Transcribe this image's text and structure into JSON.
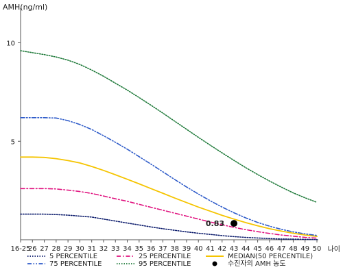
{
  "chart_data": {
    "type": "line",
    "ylabel": "AMH(ng/ml)",
    "xlabel": "나이",
    "categories": [
      "16-25",
      "26",
      "27",
      "28",
      "29",
      "30",
      "31",
      "32",
      "33",
      "34",
      "35",
      "36",
      "37",
      "38",
      "39",
      "40",
      "41",
      "42",
      "43",
      "44",
      "45",
      "46",
      "47",
      "48",
      "49",
      "50"
    ],
    "yticks": [
      5,
      10
    ],
    "ylim": [
      0,
      11.2
    ],
    "grid": false,
    "legend_position": "bottom",
    "series": [
      {
        "name": "5 PERCENTILE",
        "color": "#0a1a6b",
        "dash": "dotted",
        "values": [
          1.3,
          1.3,
          1.3,
          1.28,
          1.25,
          1.2,
          1.15,
          1.05,
          0.95,
          0.85,
          0.75,
          0.65,
          0.56,
          0.48,
          0.4,
          0.33,
          0.27,
          0.21,
          0.16,
          0.12,
          0.09,
          0.06,
          0.04,
          0.03,
          0.02,
          0.01
        ]
      },
      {
        "name": "25 PERCENTILE",
        "color": "#e0127f",
        "dash": "dashdot",
        "values": [
          2.6,
          2.6,
          2.6,
          2.58,
          2.52,
          2.45,
          2.35,
          2.22,
          2.08,
          1.95,
          1.8,
          1.65,
          1.5,
          1.35,
          1.2,
          1.05,
          0.9,
          0.76,
          0.63,
          0.51,
          0.41,
          0.32,
          0.24,
          0.18,
          0.12,
          0.08
        ]
      },
      {
        "name": "MEDIAN(50 PERCENTILE)",
        "color": "#f5c400",
        "dash": "solid",
        "values": [
          4.2,
          4.2,
          4.18,
          4.12,
          4.02,
          3.9,
          3.72,
          3.52,
          3.3,
          3.07,
          2.84,
          2.6,
          2.36,
          2.12,
          1.89,
          1.66,
          1.45,
          1.24,
          1.05,
          0.87,
          0.71,
          0.56,
          0.44,
          0.33,
          0.24,
          0.17
        ]
      },
      {
        "name": "75 PERCENTILE",
        "color": "#2e5bc9",
        "dash": "dashdotdot",
        "values": [
          6.2,
          6.2,
          6.2,
          6.18,
          6.05,
          5.85,
          5.6,
          5.28,
          4.95,
          4.6,
          4.22,
          3.84,
          3.45,
          3.06,
          2.68,
          2.32,
          1.98,
          1.66,
          1.37,
          1.11,
          0.88,
          0.69,
          0.53,
          0.4,
          0.3,
          0.22
        ]
      },
      {
        "name": "95 PERCENTILE",
        "color": "#1f7a3a",
        "dash": "dotted",
        "values": [
          9.6,
          9.5,
          9.4,
          9.28,
          9.12,
          8.9,
          8.62,
          8.3,
          7.95,
          7.6,
          7.22,
          6.83,
          6.43,
          6.02,
          5.61,
          5.2,
          4.8,
          4.41,
          4.03,
          3.66,
          3.31,
          2.98,
          2.67,
          2.38,
          2.13,
          1.9
        ]
      }
    ],
    "marker": {
      "name": "수진자의 AMH 농도",
      "x": "43",
      "y": 0.83,
      "label": "0.83",
      "color": "#000000"
    }
  }
}
